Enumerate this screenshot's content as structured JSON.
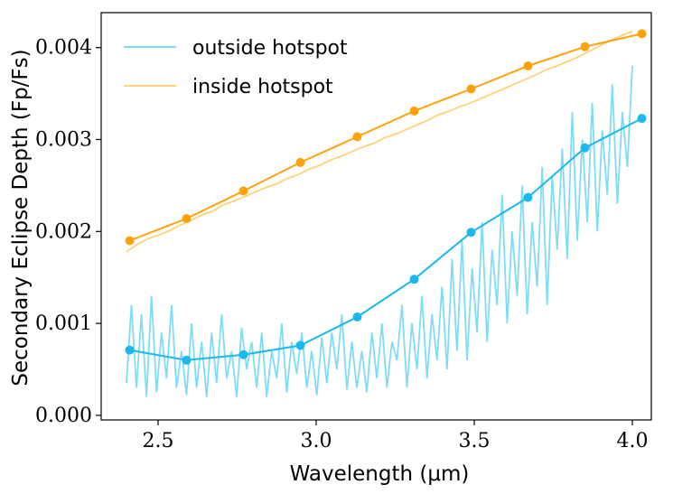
{
  "chart_data": {
    "type": "line",
    "xlabel": "Wavelength (μm)",
    "ylabel": "Secondary Eclipse Depth (Fp/Fs)",
    "xlim": [
      2.32,
      4.06
    ],
    "ylim": [
      -5e-05,
      0.00438
    ],
    "xticks": [
      "2.5",
      "3.0",
      "3.5",
      "4.0"
    ],
    "yticks": [
      "0.000",
      "0.001",
      "0.002",
      "0.003",
      "0.004"
    ],
    "legend_position": "top-left",
    "series": [
      {
        "name": "outside hotspot",
        "kind": "spectrum",
        "color": "#7fdcf7",
        "x_start": 2.4,
        "x_end": 4.0,
        "values": [
          0.00035,
          0.0012,
          0.0003,
          0.0011,
          0.0002,
          0.0013,
          0.00025,
          0.0009,
          0.0004,
          0.0012,
          0.0003,
          0.0007,
          0.00022,
          0.001,
          0.0003,
          0.0008,
          0.0002,
          0.0009,
          0.00035,
          0.0011,
          0.0004,
          0.0007,
          0.0002,
          0.00095,
          0.0005,
          0.0008,
          0.0003,
          0.0009,
          0.0002,
          0.0007,
          0.0004,
          0.001,
          0.00025,
          0.0008,
          0.00045,
          0.0009,
          0.0003,
          0.0007,
          0.00022,
          0.00085,
          0.00035,
          0.0009,
          0.0005,
          0.0011,
          0.00028,
          0.0008,
          0.0003,
          0.0007,
          0.00025,
          0.0009,
          0.0004,
          0.001,
          0.0003,
          0.0008,
          0.0006,
          0.0012,
          0.0003,
          0.001,
          0.0005,
          0.0013,
          0.0004,
          0.0011,
          0.0006,
          0.0014,
          0.0005,
          0.0017,
          0.0007,
          0.0019,
          0.0006,
          0.0016,
          0.0009,
          0.0021,
          0.0008,
          0.0018,
          0.0012,
          0.0024,
          0.001,
          0.002,
          0.0013,
          0.0025,
          0.0011,
          0.0021,
          0.0014,
          0.0027,
          0.0012,
          0.0026,
          0.0018,
          0.0029,
          0.0017,
          0.0033,
          0.0019,
          0.003,
          0.0021,
          0.0034,
          0.002,
          0.0031,
          0.0024,
          0.0036,
          0.0023,
          0.0033,
          0.0027,
          0.0038
        ],
        "binned_x": [
          2.41,
          2.59,
          2.77,
          2.95,
          3.13,
          3.31,
          3.49,
          3.67,
          3.85,
          4.03
        ],
        "binned_y": [
          0.00071,
          0.0006,
          0.00066,
          0.00076,
          0.00107,
          0.00148,
          0.00199,
          0.00237,
          0.00291,
          0.00323
        ],
        "binned_color": "#1ab8ec"
      },
      {
        "name": "inside hotspot",
        "kind": "spectrum",
        "color": "#ffd27a",
        "x_start": 2.4,
        "x_end": 4.0,
        "values": [
          0.00178,
          0.00186,
          0.00192,
          0.00196,
          0.00201,
          0.00207,
          0.00212,
          0.00218,
          0.00222,
          0.00229,
          0.00233,
          0.00238,
          0.00243,
          0.00248,
          0.00252,
          0.00258,
          0.00262,
          0.00268,
          0.00272,
          0.00278,
          0.00282,
          0.00287,
          0.00292,
          0.00296,
          0.00302,
          0.00306,
          0.00311,
          0.00316,
          0.00321,
          0.00327,
          0.00331,
          0.00336,
          0.0034,
          0.00345,
          0.0035,
          0.00355,
          0.0036,
          0.00365,
          0.0037,
          0.00376,
          0.0038,
          0.00385,
          0.0039,
          0.00396,
          0.00402,
          0.00408,
          0.00413,
          0.00418
        ],
        "binned_x": [
          2.41,
          2.59,
          2.77,
          2.95,
          3.13,
          3.31,
          3.49,
          3.67,
          3.85,
          4.03
        ],
        "binned_y": [
          0.0019,
          0.00214,
          0.00244,
          0.00275,
          0.00303,
          0.00331,
          0.00355,
          0.0038,
          0.00401,
          0.00415
        ],
        "binned_color": "#ffa10a"
      }
    ]
  }
}
